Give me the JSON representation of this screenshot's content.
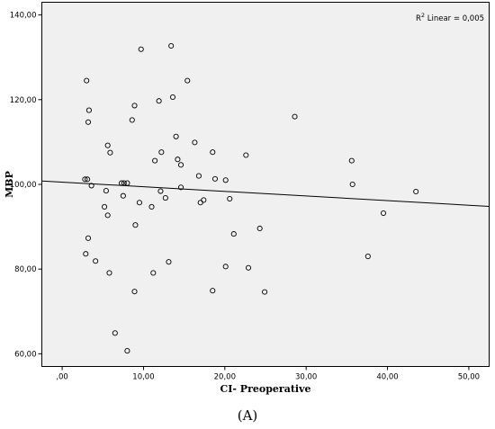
{
  "chart_data": {
    "type": "scatter",
    "xlabel": "CI- Preoperative",
    "ylabel": "MBP",
    "xlim": [
      -2.5,
      52.5
    ],
    "ylim": [
      57,
      143
    ],
    "xticks": [
      0,
      10,
      20,
      30,
      40,
      50
    ],
    "xtick_labels": [
      ",00",
      "10,00",
      "20,00",
      "30,00",
      "40,00",
      "50,00"
    ],
    "yticks": [
      60,
      80,
      100,
      120,
      140
    ],
    "ytick_labels": [
      "60,00",
      "80,00",
      "100,00",
      "120,00",
      "140,00"
    ],
    "grid": false,
    "annotation": {
      "label": "R",
      "sup": "2",
      "rest": " Linear = 0,005"
    },
    "fit_line": {
      "x": [
        -2.5,
        52.5
      ],
      "y": [
        100.8,
        94.8
      ]
    },
    "points": {
      "x": [
        3.0,
        3.3,
        3.2,
        3.1,
        5.6,
        5.9,
        2.8,
        3.6,
        5.4,
        7.3,
        7.6,
        8.0,
        7.5,
        5.2,
        5.6,
        3.2,
        2.9,
        4.1,
        5.8,
        9.7,
        8.9,
        8.6,
        13.4,
        15.4,
        13.6,
        11.9,
        14.0,
        12.2,
        11.4,
        14.2,
        14.6,
        16.3,
        16.8,
        18.5,
        18.8,
        20.1,
        22.6,
        28.6,
        35.6,
        35.7,
        43.5,
        39.5,
        37.6,
        14.6,
        12.1,
        12.7,
        11.0,
        9.5,
        9.0,
        17.0,
        17.4,
        20.6,
        21.1,
        24.3,
        20.1,
        22.9,
        13.1,
        11.2,
        8.9,
        18.5,
        24.9,
        6.5,
        8.0
      ],
      "y": [
        124.5,
        117.5,
        114.7,
        101.2,
        109.2,
        107.5,
        101.2,
        99.7,
        98.5,
        100.3,
        100.3,
        100.3,
        97.3,
        94.7,
        92.7,
        87.3,
        83.6,
        81.9,
        79.1,
        131.9,
        118.6,
        115.2,
        132.7,
        124.5,
        120.6,
        119.7,
        111.3,
        107.6,
        105.6,
        105.9,
        104.6,
        109.9,
        102.0,
        107.6,
        101.3,
        101.0,
        106.9,
        116.0,
        105.6,
        100.0,
        98.3,
        93.2,
        83.0,
        99.3,
        98.4,
        96.8,
        94.7,
        95.7,
        90.4,
        95.7,
        96.3,
        96.6,
        88.3,
        89.6,
        80.6,
        80.3,
        81.7,
        79.1,
        74.7,
        74.9,
        74.6,
        64.9,
        60.7
      ]
    }
  },
  "caption": "(A)"
}
